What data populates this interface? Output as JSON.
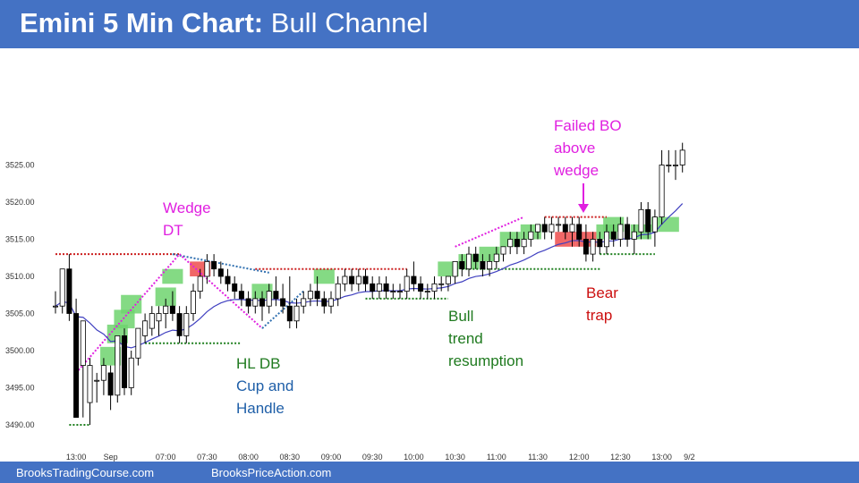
{
  "title": {
    "bold": "Emini 5 Min Chart:",
    "rest": "Bull Channel"
  },
  "footer": {
    "left": "BrooksTradingCourse.com",
    "right": "BrooksPriceAction.com"
  },
  "colors": {
    "header": "#4472c4",
    "bull_bar": "#ffffff",
    "bear_bar": "#000000",
    "ema": "#4040c0",
    "green_box": "#6ed36e",
    "red_box": "#ee4c4c",
    "magenta": "#e020e0",
    "red_dot": "#cc2020",
    "green_dot": "#208020",
    "blue_dot": "#3070b0"
  },
  "chart_data": {
    "type": "candlestick",
    "y_ticks": [
      "3490.00",
      "3495.00",
      "3500.00",
      "3505.00",
      "3510.00",
      "3515.00",
      "3520.00",
      "3525.00"
    ],
    "y_tick_values": [
      3490,
      3495,
      3500,
      3505,
      3510,
      3515,
      3520,
      3525
    ],
    "ylim": [
      3488,
      3531
    ],
    "x_ticks": [
      "13:00",
      "Sep",
      "07:00",
      "07:30",
      "08:00",
      "08:30",
      "09:00",
      "09:30",
      "10:00",
      "10:30",
      "11:00",
      "11:30",
      "12:00",
      "12:30",
      "13:00",
      "9/2"
    ],
    "x_tick_bars": [
      3,
      8,
      16,
      22,
      28,
      34,
      40,
      46,
      52,
      58,
      64,
      70,
      76,
      82,
      88,
      92
    ],
    "bars": [
      [
        3506,
        3508,
        3505,
        3506
      ],
      [
        3506,
        3511,
        3505,
        3511
      ],
      [
        3511,
        3513,
        3504,
        3505
      ],
      [
        3505,
        3507,
        3491,
        3491
      ],
      [
        3498,
        3504,
        3491,
        3504
      ],
      [
        3493,
        3499,
        3490,
        3498
      ],
      [
        3496,
        3497,
        3493,
        3496
      ],
      [
        3496,
        3499,
        3494,
        3498
      ],
      [
        3497,
        3498,
        3492,
        3494
      ],
      [
        3494,
        3502,
        3493,
        3502
      ],
      [
        3502,
        3503,
        3494,
        3495
      ],
      [
        3495,
        3500,
        3494,
        3499
      ],
      [
        3499,
        3503,
        3498,
        3503
      ],
      [
        3502,
        3505,
        3501,
        3504
      ],
      [
        3503,
        3506,
        3502,
        3505
      ],
      [
        3504,
        3506,
        3502,
        3505
      ],
      [
        3505,
        3507,
        3503,
        3506
      ],
      [
        3506,
        3508,
        3504,
        3505
      ],
      [
        3505,
        3506,
        3501,
        3502
      ],
      [
        3502,
        3506,
        3501,
        3505
      ],
      [
        3505,
        3509,
        3504,
        3508
      ],
      [
        3508,
        3511,
        3507,
        3510
      ],
      [
        3510,
        3513,
        3509,
        3512
      ],
      [
        3512,
        3513,
        3510,
        3511
      ],
      [
        3511,
        3512,
        3509,
        3510
      ],
      [
        3510,
        3511,
        3508,
        3509
      ],
      [
        3509,
        3510,
        3507,
        3508
      ],
      [
        3508,
        3509,
        3506,
        3507
      ],
      [
        3507,
        3508,
        3505,
        3506
      ],
      [
        3506,
        3508,
        3505,
        3507
      ],
      [
        3507,
        3508,
        3504,
        3506
      ],
      [
        3506,
        3509,
        3505,
        3508
      ],
      [
        3508,
        3510,
        3506,
        3507
      ],
      [
        3507,
        3509,
        3505,
        3506
      ],
      [
        3506,
        3510,
        3503,
        3504
      ],
      [
        3504,
        3507,
        3503,
        3506
      ],
      [
        3506,
        3508,
        3505,
        3507
      ],
      [
        3507,
        3509,
        3506,
        3508
      ],
      [
        3508,
        3510,
        3506,
        3507
      ],
      [
        3507,
        3508,
        3505,
        3506
      ],
      [
        3506,
        3508,
        3505,
        3507
      ],
      [
        3507,
        3510,
        3506,
        3509
      ],
      [
        3509,
        3511,
        3508,
        3510
      ],
      [
        3510,
        3511,
        3508,
        3509
      ],
      [
        3509,
        3511,
        3508,
        3510
      ],
      [
        3510,
        3511,
        3508,
        3509
      ],
      [
        3509,
        3510,
        3507,
        3508
      ],
      [
        3508,
        3510,
        3507,
        3509
      ],
      [
        3509,
        3510,
        3507,
        3508
      ],
      [
        3508,
        3509,
        3507,
        3508
      ],
      [
        3508,
        3509,
        3507,
        3508
      ],
      [
        3508,
        3511,
        3507,
        3510
      ],
      [
        3510,
        3512,
        3508,
        3509
      ],
      [
        3509,
        3510,
        3507,
        3508
      ],
      [
        3508,
        3509,
        3507,
        3508
      ],
      [
        3508,
        3510,
        3507,
        3509
      ],
      [
        3509,
        3510,
        3508,
        3509
      ],
      [
        3509,
        3510,
        3508,
        3510
      ],
      [
        3510,
        3512,
        3509,
        3512
      ],
      [
        3512,
        3513,
        3510,
        3511
      ],
      [
        3511,
        3514,
        3510,
        3513
      ],
      [
        3513,
        3514,
        3511,
        3512
      ],
      [
        3512,
        3513,
        3510,
        3511
      ],
      [
        3511,
        3513,
        3510,
        3512
      ],
      [
        3512,
        3514,
        3511,
        3513
      ],
      [
        3513,
        3514,
        3512,
        3514
      ],
      [
        3514,
        3516,
        3513,
        3515
      ],
      [
        3515,
        3516,
        3513,
        3514
      ],
      [
        3514,
        3516,
        3513,
        3515
      ],
      [
        3515,
        3517,
        3514,
        3516
      ],
      [
        3516,
        3517,
        3515,
        3517
      ],
      [
        3517,
        3518,
        3515,
        3516
      ],
      [
        3516,
        3518,
        3515,
        3517
      ],
      [
        3517,
        3518,
        3516,
        3517
      ],
      [
        3517,
        3518,
        3515,
        3516
      ],
      [
        3516,
        3518,
        3514,
        3517
      ],
      [
        3517,
        3518,
        3514,
        3515
      ],
      [
        3515,
        3517,
        3512,
        3513
      ],
      [
        3513,
        3516,
        3512,
        3515
      ],
      [
        3515,
        3516,
        3513,
        3514
      ],
      [
        3514,
        3517,
        3513,
        3516
      ],
      [
        3516,
        3517,
        3514,
        3515
      ],
      [
        3515,
        3518,
        3514,
        3517
      ],
      [
        3517,
        3518,
        3514,
        3515
      ],
      [
        3515,
        3517,
        3513,
        3516
      ],
      [
        3516,
        3520,
        3515,
        3519
      ],
      [
        3519,
        3520,
        3515,
        3516
      ],
      [
        3516,
        3519,
        3514,
        3518
      ],
      [
        3518,
        3527,
        3517,
        3525
      ],
      [
        3525,
        3527,
        3524,
        3525
      ],
      [
        3525,
        3527,
        3523,
        3525
      ],
      [
        3525,
        3528,
        3524,
        3527
      ]
    ],
    "annotations": {
      "wedge_dt": [
        "Wedge",
        "DT"
      ],
      "hl_db": [
        "HL DB",
        "Cup and",
        "Handle"
      ],
      "bull_trend": [
        "Bull",
        "trend",
        "resumption"
      ],
      "failed_bo": [
        "Failed BO",
        "above",
        "wedge"
      ],
      "bear_trap": [
        "Bear",
        "trap"
      ]
    }
  }
}
